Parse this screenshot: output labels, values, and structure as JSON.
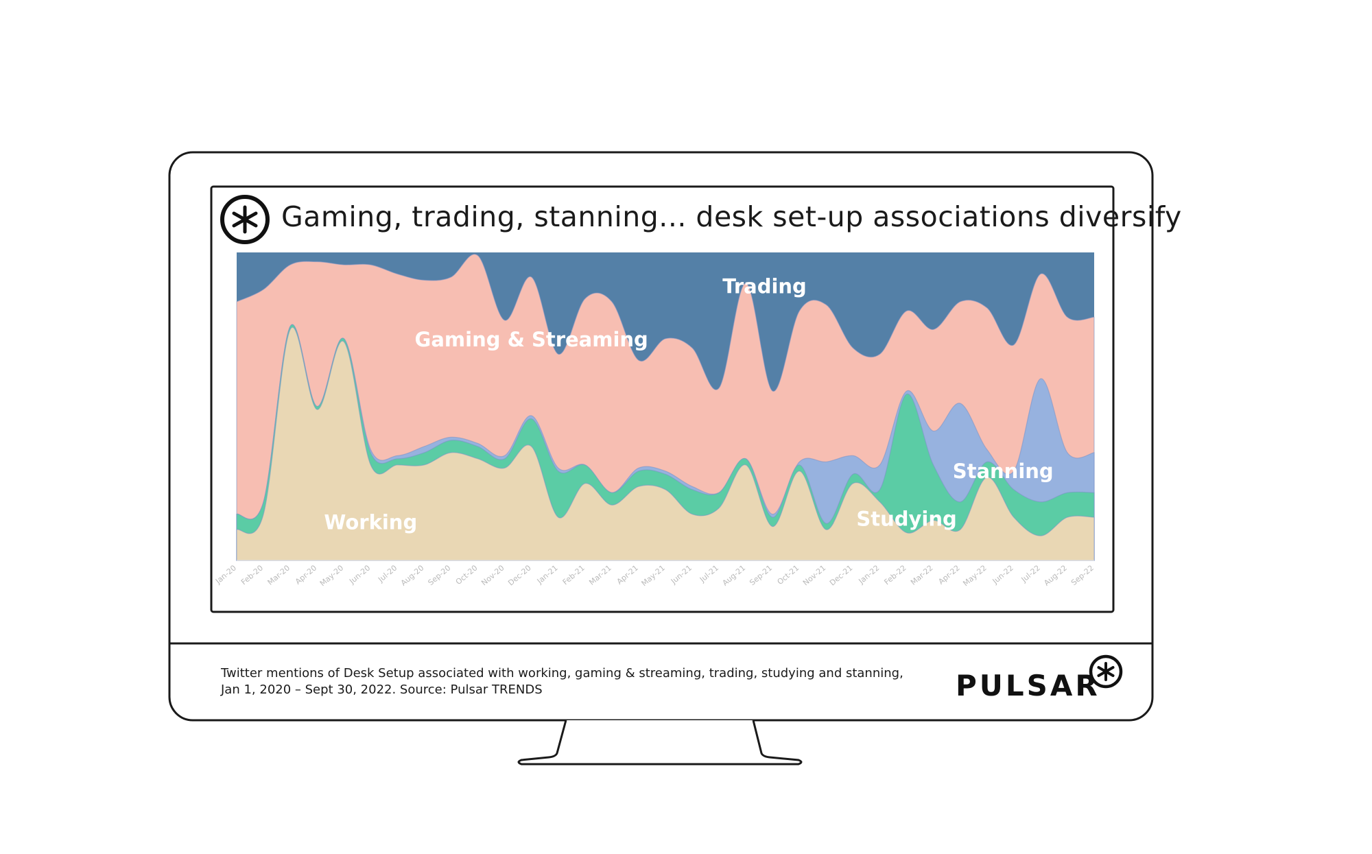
{
  "title": "Gaming, trading, stanning... desk set-up associations diversify",
  "caption": {
    "line1": "Twitter mentions of Desk Setup associated with working, gaming & streaming, trading, studying and stanning,",
    "line2": "Jan 1, 2020 – Sept 30, 2022. Source: Pulsar TRENDS"
  },
  "brand": {
    "name": "PULSAR",
    "logo_icon": "asterisk-circle-icon"
  },
  "chart_data": {
    "type": "area",
    "stacking": "percent",
    "ylim": [
      0,
      100
    ],
    "grid": false,
    "legend": "none",
    "x": [
      "Jan-20",
      "Feb-20",
      "Mar-20",
      "Apr-20",
      "May-20",
      "Jun-20",
      "Jul-20",
      "Aug-20",
      "Sep-20",
      "Oct-20",
      "Nov-20",
      "Dec-20",
      "Jan-21",
      "Feb-21",
      "Mar-21",
      "Apr-21",
      "May-21",
      "Jun-21",
      "Jul-21",
      "Aug-21",
      "Sep-21",
      "Oct-21",
      "Nov-21",
      "Dec-21",
      "Jan-22",
      "Feb-22",
      "Mar-22",
      "Apr-22",
      "May-22",
      "Jun-22",
      "Jul-22",
      "Aug-22",
      "Sep-22"
    ],
    "series": [
      {
        "name": "Working",
        "color": "#e9d7b4",
        "values": [
          10,
          15,
          75,
          49,
          71,
          31,
          31,
          31,
          35,
          33,
          30,
          37,
          14,
          25,
          18,
          24,
          23,
          15,
          17,
          31,
          11,
          29,
          10,
          25,
          19,
          9,
          13,
          10,
          27,
          14,
          8,
          14,
          14
        ]
      },
      {
        "name": "Studying",
        "color": "#5bcca5",
        "values": [
          5,
          4,
          1,
          1,
          1,
          4,
          2,
          4,
          4,
          4,
          3,
          9,
          15,
          6,
          4,
          5,
          5,
          8,
          5,
          2,
          3,
          2,
          2,
          3,
          4,
          45,
          18,
          9,
          5,
          9,
          11,
          8,
          8
        ]
      },
      {
        "name": "Stanning",
        "color": "#97b2df",
        "values": [
          0,
          0,
          0,
          0,
          0,
          1,
          1,
          2,
          1,
          1,
          1,
          1,
          1,
          0,
          0,
          1,
          1,
          1,
          0,
          0,
          1,
          1,
          20,
          6,
          8,
          1,
          11,
          32,
          4,
          6,
          40,
          13,
          13
        ]
      },
      {
        "name": "Gaming & Streaming",
        "color": "#f7beb2",
        "values": [
          69,
          69,
          20,
          47,
          24,
          60,
          59,
          54,
          52,
          61,
          44,
          45,
          37,
          54,
          62,
          35,
          43,
          45,
          34,
          57,
          40,
          49,
          51,
          35,
          36,
          26,
          33,
          33,
          46,
          41,
          34,
          44,
          44
        ]
      },
      {
        "name": "Trading",
        "color": "#5480a7",
        "values": [
          16,
          12,
          4,
          3,
          4,
          4,
          7,
          9,
          8,
          1,
          22,
          8,
          33,
          15,
          16,
          35,
          28,
          31,
          44,
          10,
          45,
          19,
          17,
          31,
          33,
          19,
          25,
          16,
          18,
          30,
          7,
          21,
          21
        ]
      }
    ]
  }
}
